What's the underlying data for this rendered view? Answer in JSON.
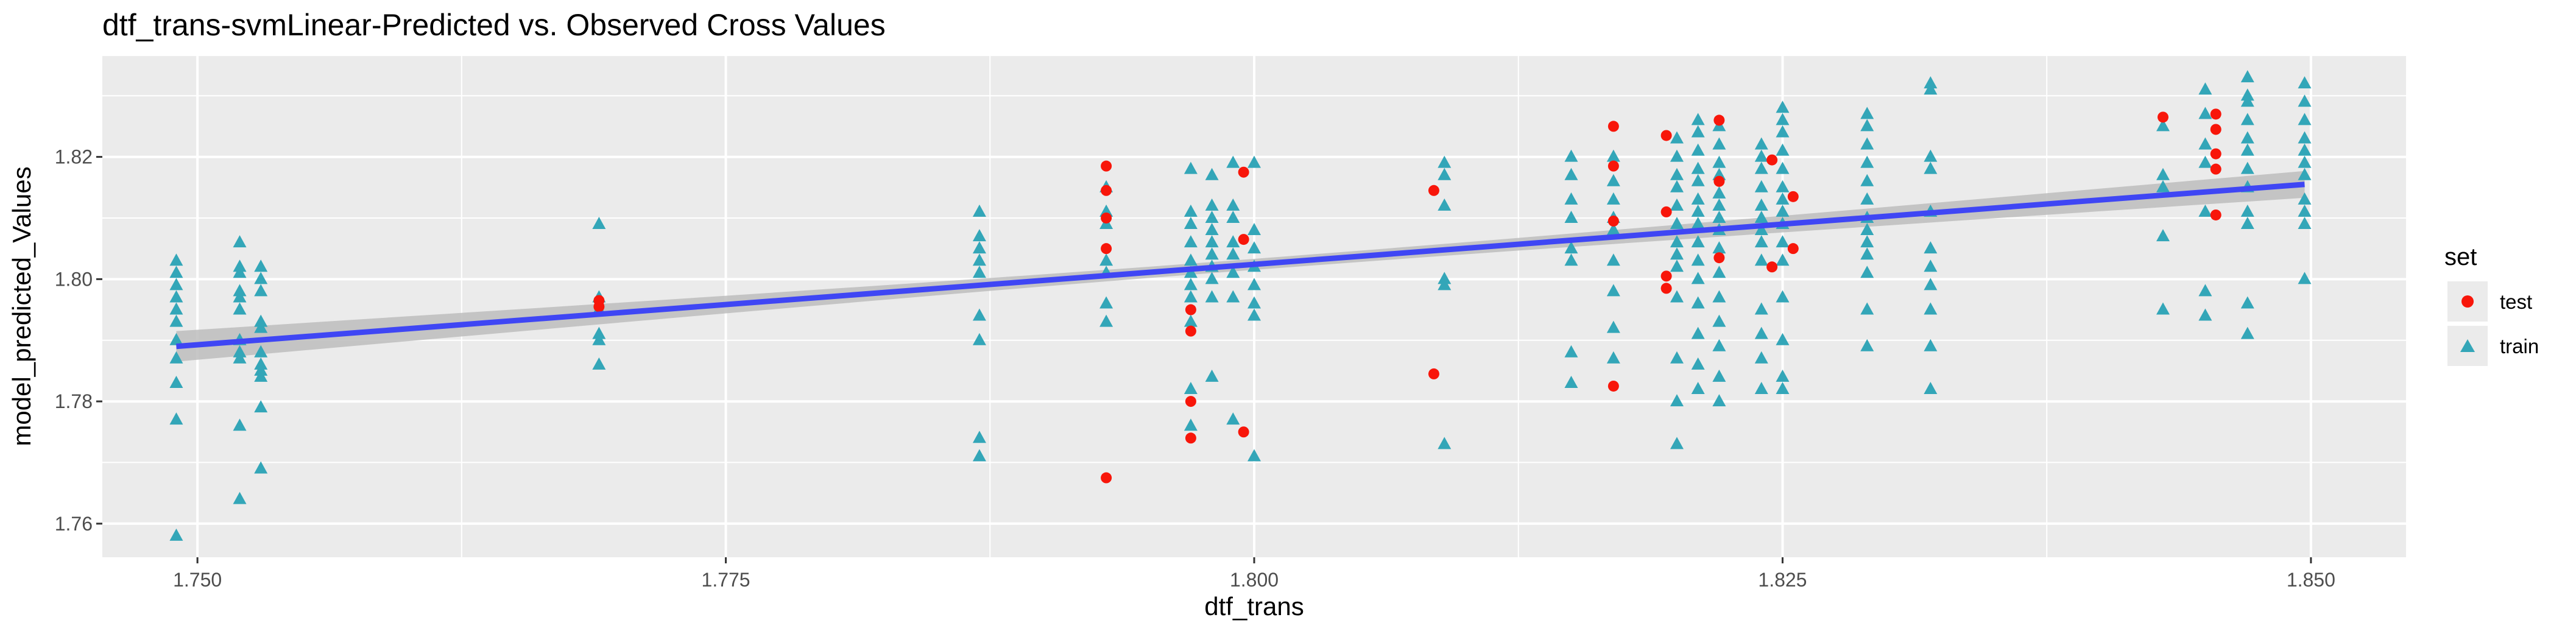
{
  "chart_data": {
    "type": "scatter",
    "title": "dtf_trans-svmLinear-Predicted vs. Observed Cross Values",
    "xlabel": "dtf_trans",
    "ylabel": "model_predicted_Values",
    "xlim": [
      1.7455,
      1.8545
    ],
    "ylim": [
      1.7545,
      1.8365
    ],
    "x_ticks": [
      1.75,
      1.775,
      1.8,
      1.825,
      1.85
    ],
    "x_tick_labels": [
      "1.750",
      "1.775",
      "1.800",
      "1.825",
      "1.850"
    ],
    "y_ticks": [
      1.76,
      1.78,
      1.8,
      1.82
    ],
    "y_tick_labels": [
      "1.76",
      "1.78",
      "1.80",
      "1.82"
    ],
    "grid": true,
    "legend": {
      "title": "set",
      "position": "right",
      "entries": [
        {
          "label": "test",
          "shape": "circle",
          "color": "#F8160A"
        },
        {
          "label": "train",
          "shape": "triangle",
          "color": "#33A6B8"
        }
      ]
    },
    "trend_line": {
      "color": "#3F46F4",
      "x": [
        1.749,
        1.8497
      ],
      "y": [
        1.789,
        1.8155
      ],
      "band_halfwidth_start": 0.0025,
      "band_halfwidth_mid": 0.0009,
      "band_halfwidth_end": 0.0022,
      "band_color": "#BDBDBD"
    },
    "series": [
      {
        "name": "train",
        "color": "#33A6B8",
        "shape": "triangle",
        "points": [
          [
            1.749,
            1.758
          ],
          [
            1.749,
            1.777
          ],
          [
            1.749,
            1.783
          ],
          [
            1.749,
            1.787
          ],
          [
            1.749,
            1.79
          ],
          [
            1.749,
            1.793
          ],
          [
            1.749,
            1.795
          ],
          [
            1.749,
            1.797
          ],
          [
            1.749,
            1.799
          ],
          [
            1.749,
            1.801
          ],
          [
            1.749,
            1.803
          ],
          [
            1.752,
            1.764
          ],
          [
            1.752,
            1.776
          ],
          [
            1.752,
            1.787
          ],
          [
            1.752,
            1.788
          ],
          [
            1.752,
            1.79
          ],
          [
            1.752,
            1.795
          ],
          [
            1.752,
            1.797
          ],
          [
            1.752,
            1.798
          ],
          [
            1.752,
            1.801
          ],
          [
            1.752,
            1.802
          ],
          [
            1.752,
            1.806
          ],
          [
            1.753,
            1.769
          ],
          [
            1.753,
            1.779
          ],
          [
            1.753,
            1.784
          ],
          [
            1.753,
            1.785
          ],
          [
            1.753,
            1.786
          ],
          [
            1.753,
            1.788
          ],
          [
            1.753,
            1.792
          ],
          [
            1.753,
            1.793
          ],
          [
            1.753,
            1.798
          ],
          [
            1.753,
            1.8
          ],
          [
            1.753,
            1.802
          ],
          [
            1.769,
            1.786
          ],
          [
            1.769,
            1.79
          ],
          [
            1.769,
            1.791
          ],
          [
            1.769,
            1.795
          ],
          [
            1.769,
            1.797
          ],
          [
            1.769,
            1.809
          ],
          [
            1.787,
            1.771
          ],
          [
            1.787,
            1.774
          ],
          [
            1.787,
            1.79
          ],
          [
            1.787,
            1.794
          ],
          [
            1.787,
            1.801
          ],
          [
            1.787,
            1.803
          ],
          [
            1.787,
            1.805
          ],
          [
            1.787,
            1.807
          ],
          [
            1.787,
            1.811
          ],
          [
            1.793,
            1.793
          ],
          [
            1.793,
            1.796
          ],
          [
            1.793,
            1.801
          ],
          [
            1.793,
            1.803
          ],
          [
            1.793,
            1.809
          ],
          [
            1.793,
            1.811
          ],
          [
            1.793,
            1.815
          ],
          [
            1.797,
            1.776
          ],
          [
            1.797,
            1.782
          ],
          [
            1.797,
            1.793
          ],
          [
            1.797,
            1.797
          ],
          [
            1.797,
            1.799
          ],
          [
            1.797,
            1.801
          ],
          [
            1.797,
            1.803
          ],
          [
            1.797,
            1.806
          ],
          [
            1.797,
            1.809
          ],
          [
            1.797,
            1.811
          ],
          [
            1.797,
            1.818
          ],
          [
            1.798,
            1.784
          ],
          [
            1.798,
            1.797
          ],
          [
            1.798,
            1.8
          ],
          [
            1.798,
            1.802
          ],
          [
            1.798,
            1.804
          ],
          [
            1.798,
            1.806
          ],
          [
            1.798,
            1.808
          ],
          [
            1.798,
            1.81
          ],
          [
            1.798,
            1.812
          ],
          [
            1.798,
            1.817
          ],
          [
            1.799,
            1.777
          ],
          [
            1.799,
            1.797
          ],
          [
            1.799,
            1.801
          ],
          [
            1.799,
            1.804
          ],
          [
            1.799,
            1.806
          ],
          [
            1.799,
            1.81
          ],
          [
            1.799,
            1.812
          ],
          [
            1.799,
            1.819
          ],
          [
            1.8,
            1.771
          ],
          [
            1.8,
            1.794
          ],
          [
            1.8,
            1.796
          ],
          [
            1.8,
            1.799
          ],
          [
            1.8,
            1.802
          ],
          [
            1.8,
            1.805
          ],
          [
            1.8,
            1.808
          ],
          [
            1.8,
            1.819
          ],
          [
            1.809,
            1.773
          ],
          [
            1.809,
            1.799
          ],
          [
            1.809,
            1.8
          ],
          [
            1.809,
            1.812
          ],
          [
            1.809,
            1.817
          ],
          [
            1.809,
            1.819
          ],
          [
            1.815,
            1.783
          ],
          [
            1.815,
            1.788
          ],
          [
            1.815,
            1.803
          ],
          [
            1.815,
            1.805
          ],
          [
            1.815,
            1.81
          ],
          [
            1.815,
            1.813
          ],
          [
            1.815,
            1.817
          ],
          [
            1.815,
            1.82
          ],
          [
            1.817,
            1.787
          ],
          [
            1.817,
            1.792
          ],
          [
            1.817,
            1.798
          ],
          [
            1.817,
            1.803
          ],
          [
            1.817,
            1.808
          ],
          [
            1.817,
            1.81
          ],
          [
            1.817,
            1.813
          ],
          [
            1.817,
            1.816
          ],
          [
            1.817,
            1.82
          ],
          [
            1.82,
            1.773
          ],
          [
            1.82,
            1.78
          ],
          [
            1.82,
            1.787
          ],
          [
            1.82,
            1.797
          ],
          [
            1.82,
            1.802
          ],
          [
            1.82,
            1.804
          ],
          [
            1.82,
            1.806
          ],
          [
            1.82,
            1.809
          ],
          [
            1.82,
            1.812
          ],
          [
            1.82,
            1.815
          ],
          [
            1.82,
            1.817
          ],
          [
            1.82,
            1.82
          ],
          [
            1.82,
            1.823
          ],
          [
            1.821,
            1.782
          ],
          [
            1.821,
            1.786
          ],
          [
            1.821,
            1.791
          ],
          [
            1.821,
            1.796
          ],
          [
            1.821,
            1.8
          ],
          [
            1.821,
            1.803
          ],
          [
            1.821,
            1.806
          ],
          [
            1.821,
            1.809
          ],
          [
            1.821,
            1.811
          ],
          [
            1.821,
            1.813
          ],
          [
            1.821,
            1.816
          ],
          [
            1.821,
            1.818
          ],
          [
            1.821,
            1.821
          ],
          [
            1.821,
            1.824
          ],
          [
            1.821,
            1.826
          ],
          [
            1.822,
            1.78
          ],
          [
            1.822,
            1.784
          ],
          [
            1.822,
            1.789
          ],
          [
            1.822,
            1.793
          ],
          [
            1.822,
            1.797
          ],
          [
            1.822,
            1.801
          ],
          [
            1.822,
            1.805
          ],
          [
            1.822,
            1.808
          ],
          [
            1.822,
            1.81
          ],
          [
            1.822,
            1.812
          ],
          [
            1.822,
            1.814
          ],
          [
            1.822,
            1.817
          ],
          [
            1.822,
            1.819
          ],
          [
            1.822,
            1.822
          ],
          [
            1.822,
            1.825
          ],
          [
            1.824,
            1.782
          ],
          [
            1.824,
            1.787
          ],
          [
            1.824,
            1.791
          ],
          [
            1.824,
            1.795
          ],
          [
            1.824,
            1.803
          ],
          [
            1.824,
            1.806
          ],
          [
            1.824,
            1.808
          ],
          [
            1.824,
            1.81
          ],
          [
            1.824,
            1.812
          ],
          [
            1.824,
            1.815
          ],
          [
            1.824,
            1.818
          ],
          [
            1.824,
            1.82
          ],
          [
            1.824,
            1.822
          ],
          [
            1.825,
            1.782
          ],
          [
            1.825,
            1.784
          ],
          [
            1.825,
            1.79
          ],
          [
            1.825,
            1.797
          ],
          [
            1.825,
            1.803
          ],
          [
            1.825,
            1.806
          ],
          [
            1.825,
            1.809
          ],
          [
            1.825,
            1.811
          ],
          [
            1.825,
            1.813
          ],
          [
            1.825,
            1.815
          ],
          [
            1.825,
            1.818
          ],
          [
            1.825,
            1.821
          ],
          [
            1.825,
            1.824
          ],
          [
            1.825,
            1.826
          ],
          [
            1.825,
            1.828
          ],
          [
            1.829,
            1.789
          ],
          [
            1.829,
            1.795
          ],
          [
            1.829,
            1.801
          ],
          [
            1.829,
            1.804
          ],
          [
            1.829,
            1.806
          ],
          [
            1.829,
            1.808
          ],
          [
            1.829,
            1.81
          ],
          [
            1.829,
            1.813
          ],
          [
            1.829,
            1.816
          ],
          [
            1.829,
            1.819
          ],
          [
            1.829,
            1.822
          ],
          [
            1.829,
            1.825
          ],
          [
            1.829,
            1.827
          ],
          [
            1.832,
            1.782
          ],
          [
            1.832,
            1.789
          ],
          [
            1.832,
            1.795
          ],
          [
            1.832,
            1.799
          ],
          [
            1.832,
            1.802
          ],
          [
            1.832,
            1.805
          ],
          [
            1.832,
            1.811
          ],
          [
            1.832,
            1.818
          ],
          [
            1.832,
            1.82
          ],
          [
            1.832,
            1.831
          ],
          [
            1.832,
            1.832
          ],
          [
            1.843,
            1.795
          ],
          [
            1.843,
            1.807
          ],
          [
            1.843,
            1.815
          ],
          [
            1.843,
            1.817
          ],
          [
            1.843,
            1.825
          ],
          [
            1.845,
            1.794
          ],
          [
            1.845,
            1.798
          ],
          [
            1.845,
            1.811
          ],
          [
            1.845,
            1.819
          ],
          [
            1.845,
            1.822
          ],
          [
            1.845,
            1.827
          ],
          [
            1.845,
            1.831
          ],
          [
            1.847,
            1.791
          ],
          [
            1.847,
            1.796
          ],
          [
            1.847,
            1.809
          ],
          [
            1.847,
            1.811
          ],
          [
            1.847,
            1.815
          ],
          [
            1.847,
            1.818
          ],
          [
            1.847,
            1.821
          ],
          [
            1.847,
            1.823
          ],
          [
            1.847,
            1.826
          ],
          [
            1.847,
            1.829
          ],
          [
            1.847,
            1.83
          ],
          [
            1.847,
            1.833
          ],
          [
            1.8497,
            1.8
          ],
          [
            1.8497,
            1.809
          ],
          [
            1.8497,
            1.811
          ],
          [
            1.8497,
            1.813
          ],
          [
            1.8497,
            1.817
          ],
          [
            1.8497,
            1.819
          ],
          [
            1.8497,
            1.821
          ],
          [
            1.8497,
            1.823
          ],
          [
            1.8497,
            1.826
          ],
          [
            1.8497,
            1.829
          ],
          [
            1.8497,
            1.832
          ]
        ]
      },
      {
        "name": "test",
        "color": "#F8160A",
        "shape": "circle",
        "points": [
          [
            1.769,
            1.7965
          ],
          [
            1.769,
            1.7955
          ],
          [
            1.793,
            1.7675
          ],
          [
            1.793,
            1.805
          ],
          [
            1.793,
            1.81
          ],
          [
            1.793,
            1.8145
          ],
          [
            1.793,
            1.8185
          ],
          [
            1.797,
            1.774
          ],
          [
            1.797,
            1.78
          ],
          [
            1.797,
            1.7915
          ],
          [
            1.797,
            1.795
          ],
          [
            1.7995,
            1.775
          ],
          [
            1.7995,
            1.8065
          ],
          [
            1.7995,
            1.8175
          ],
          [
            1.8085,
            1.7845
          ],
          [
            1.8085,
            1.8145
          ],
          [
            1.817,
            1.7825
          ],
          [
            1.817,
            1.8095
          ],
          [
            1.817,
            1.8185
          ],
          [
            1.817,
            1.825
          ],
          [
            1.8195,
            1.7985
          ],
          [
            1.8195,
            1.8005
          ],
          [
            1.8195,
            1.811
          ],
          [
            1.8195,
            1.8235
          ],
          [
            1.822,
            1.8035
          ],
          [
            1.822,
            1.816
          ],
          [
            1.822,
            1.826
          ],
          [
            1.8245,
            1.802
          ],
          [
            1.8245,
            1.8195
          ],
          [
            1.8255,
            1.805
          ],
          [
            1.8255,
            1.8135
          ],
          [
            1.843,
            1.8265
          ],
          [
            1.8455,
            1.8105
          ],
          [
            1.8455,
            1.818
          ],
          [
            1.8455,
            1.8205
          ],
          [
            1.8455,
            1.8245
          ],
          [
            1.8455,
            1.827
          ]
        ]
      }
    ]
  }
}
